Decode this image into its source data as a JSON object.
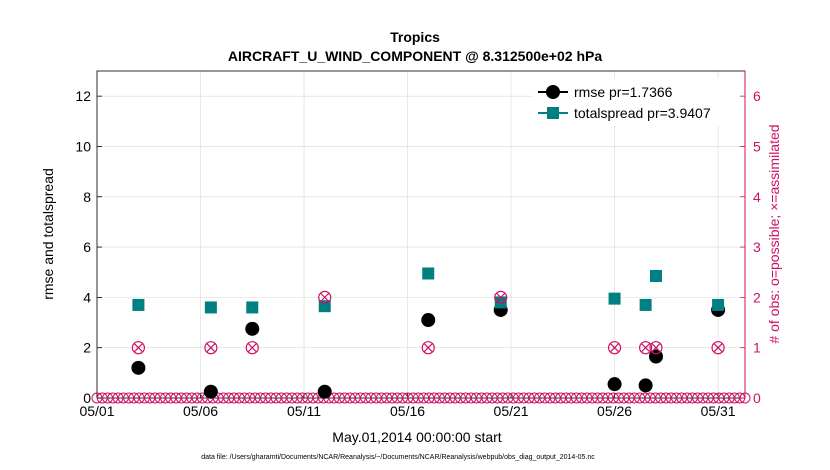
{
  "chart_data": {
    "type": "scatter",
    "title": "Tropics",
    "subtitle": "AIRCRAFT_U_WIND_COMPONENT @ 8.312500e+02 hPa",
    "xlabel": "May.01,2014 00:00:00 start",
    "ylabel": "rmse and totalspread",
    "y2label": "# of obs: o=possible; ×=assimilated",
    "xlim": [
      1,
      32.3
    ],
    "ylim": [
      0,
      13
    ],
    "y2lim": [
      0,
      6.5
    ],
    "x_ticks": [
      1,
      6,
      11,
      16,
      21,
      26,
      31
    ],
    "x_tick_labels": [
      "05/01",
      "05/06",
      "05/11",
      "05/16",
      "05/21",
      "05/26",
      "05/31"
    ],
    "y_ticks": [
      0,
      2,
      4,
      6,
      8,
      10,
      12
    ],
    "y_tick_labels": [
      "0",
      "2",
      "4",
      "6",
      "8",
      "10",
      "12"
    ],
    "y2_ticks": [
      0,
      1,
      2,
      3,
      4,
      5,
      6
    ],
    "y2_tick_labels": [
      "0",
      "1",
      "2",
      "3",
      "4",
      "5",
      "6"
    ],
    "grid": true,
    "legend_position": "top-right",
    "series": [
      {
        "name": "rmse pr=1.7366",
        "axis": "left",
        "color": "#000000",
        "marker": "circle",
        "x": [
          3,
          6.5,
          8.5,
          12,
          17,
          20.5,
          26,
          27.5,
          28,
          31
        ],
        "values": [
          1.2,
          0.25,
          2.75,
          0.25,
          3.1,
          3.5,
          0.55,
          0.5,
          1.65,
          3.5
        ]
      },
      {
        "name": "totalspread pr=3.9407",
        "axis": "left",
        "color": "#008080",
        "marker": "square",
        "x": [
          3,
          6.5,
          8.5,
          12,
          17,
          20.5,
          26,
          27.5,
          28,
          31
        ],
        "values": [
          3.7,
          3.6,
          3.6,
          3.65,
          4.95,
          3.8,
          3.95,
          3.7,
          4.85,
          3.7
        ]
      },
      {
        "name": "obs possible",
        "axis": "right",
        "color": "#cc1166",
        "marker": "open-circle",
        "x": [
          3,
          6.5,
          8.5,
          12,
          17,
          20.5,
          26,
          27.5,
          28,
          31
        ],
        "values": [
          1,
          1,
          1,
          2,
          1,
          2,
          1,
          1,
          1,
          1
        ]
      },
      {
        "name": "obs assimilated",
        "axis": "right",
        "color": "#cc1166",
        "marker": "x",
        "x": [
          3,
          6.5,
          8.5,
          12,
          17,
          20.5,
          26,
          27.5,
          28,
          31
        ],
        "values": [
          1,
          1,
          1,
          2,
          1,
          2,
          1,
          1,
          1,
          1
        ]
      }
    ],
    "zero_obs_marker_count": 124,
    "footer": "data file: /Users/gharamti/Documents/NCAR/Reanalysis/~/Documents/NCAR/Reanalysis/webpub/obs_diag_output_2014-05.nc"
  }
}
